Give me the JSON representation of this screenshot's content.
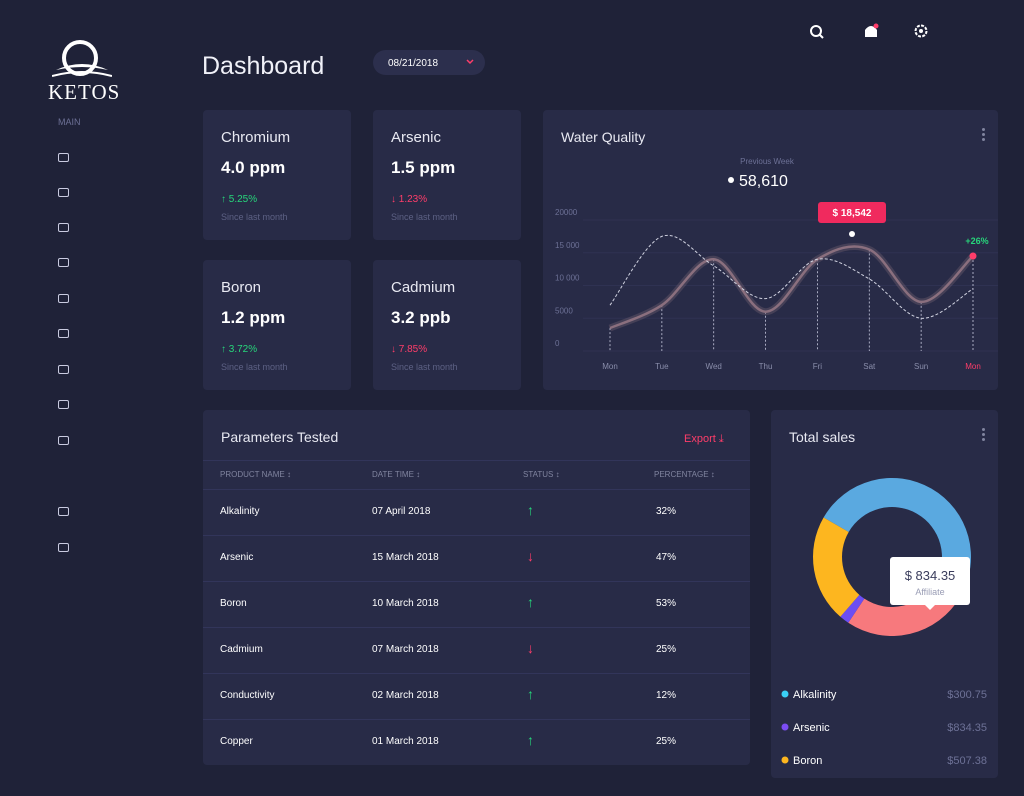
{
  "sidebar": {
    "brand": "KETOS",
    "section": "MAIN"
  },
  "header": {
    "title": "Dashboard",
    "date": "08/21/2018"
  },
  "stat_cards": [
    {
      "name": "Chromium",
      "value": "4.0 ppm",
      "change": "5.25%",
      "trend": "up",
      "note": "Since last month"
    },
    {
      "name": "Arsenic",
      "value": "1.5 ppm",
      "change": "1.23%",
      "trend": "down",
      "note": "Since last month"
    },
    {
      "name": "Boron",
      "value": "1.2 ppm",
      "change": "3.72%",
      "trend": "up",
      "note": "Since last month"
    },
    {
      "name": "Cadmium",
      "value": "3.2 ppb",
      "change": "7.85%",
      "trend": "down",
      "note": "Since last month"
    }
  ],
  "water_quality": {
    "type": "line",
    "title": "Water Quality",
    "summary_label": "Previous Week",
    "summary_value": "58,610",
    "highlight": "$ 18,542",
    "end_change": "+26%",
    "categories": [
      "Mon",
      "Tue",
      "Wed",
      "Thu",
      "Fri",
      "Sat",
      "Sun",
      "Mon"
    ],
    "series": [
      {
        "color": "#8a6f7e",
        "values": [
          3500,
          7000,
          14000,
          6000,
          14000,
          15500,
          7500,
          14500
        ]
      },
      {
        "color": "#d0d2e0",
        "dashed": true,
        "values": [
          7000,
          17500,
          13000,
          8000,
          14000,
          11000,
          5000,
          9500
        ]
      }
    ],
    "ylim": [
      0,
      20000
    ],
    "yticks": [
      0,
      5000,
      {
        "value": 10000,
        "label": "10 000"
      },
      {
        "value": 15000,
        "label": "15 000"
      },
      20000
    ],
    "grid": true
  },
  "parameters": {
    "title": "Parameters Tested",
    "export": "Export",
    "columns": [
      "PRODUCT NAME",
      "DATE TIME",
      "STATUS",
      "PERCENTAGE"
    ],
    "rows": [
      {
        "name": "Alkalinity",
        "date": "07 April 2018",
        "status": "up",
        "percentage": "32%"
      },
      {
        "name": "Arsenic",
        "date": "15 March 2018",
        "status": "down",
        "percentage": "47%"
      },
      {
        "name": "Boron",
        "date": "10 March 2018",
        "status": "up",
        "percentage": "53%"
      },
      {
        "name": "Cadmium",
        "date": "07 March 2018",
        "status": "down",
        "percentage": "25%"
      },
      {
        "name": "Conductivity",
        "date": "02 March 2018",
        "status": "up",
        "percentage": "12%"
      },
      {
        "name": "Copper",
        "date": "01 March 2018",
        "status": "up",
        "percentage": "25%"
      }
    ]
  },
  "total_sales": {
    "type": "donut",
    "title": "Total sales",
    "segments": [
      {
        "color": "#5aa9e0",
        "value": 50
      },
      {
        "color": "#f7797d",
        "value": 26
      },
      {
        "color": "#6c4ef2",
        "value": 2
      },
      {
        "color": "#fdb61f",
        "value": 22
      }
    ],
    "tooltip": {
      "value": "$ 834.35",
      "label": "Affiliate"
    },
    "legend": [
      {
        "name": "Alkalinity",
        "color": "#3ad0f5",
        "value": 300.75,
        "value_label": "$300.75"
      },
      {
        "name": "Arsenic",
        "color": "#7b4cf3",
        "value": 834.35,
        "value_label": "$834.35"
      },
      {
        "name": "Boron",
        "color": "#fdb61f",
        "value": 507.38,
        "value_label": "$507.38"
      }
    ]
  }
}
